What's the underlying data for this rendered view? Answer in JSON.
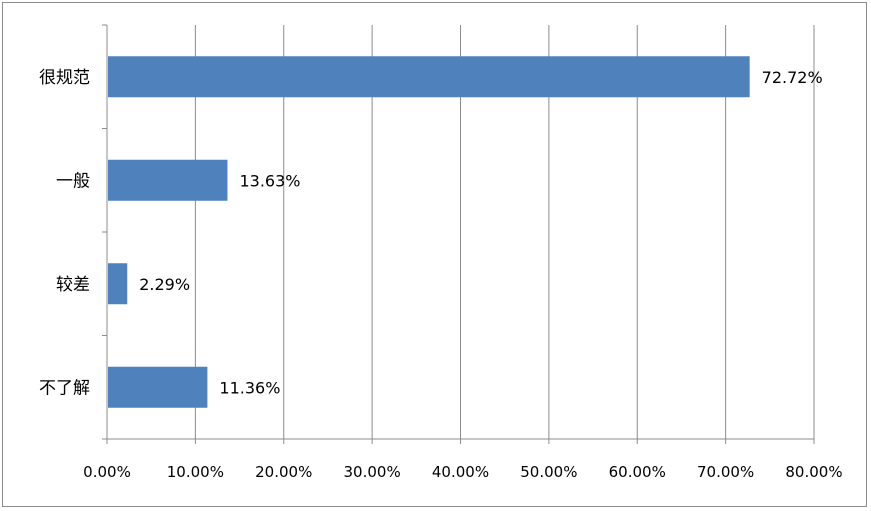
{
  "chart_data": {
    "type": "bar",
    "orientation": "horizontal",
    "title": "",
    "xlabel": "",
    "ylabel": "",
    "categories": [
      "很规范",
      "一般",
      "较差",
      "不了解"
    ],
    "values": [
      72.72,
      13.63,
      2.29,
      11.36
    ],
    "value_labels": [
      "72.72%",
      "13.63%",
      "2.29%",
      "11.36%"
    ],
    "xlim": [
      0,
      80
    ],
    "x_ticks": [
      0,
      10,
      20,
      30,
      40,
      50,
      60,
      70,
      80
    ],
    "x_tick_labels": [
      "0.00%",
      "10.00%",
      "20.00%",
      "30.00%",
      "40.00%",
      "50.00%",
      "60.00%",
      "70.00%",
      "80.00%"
    ],
    "grid": "vertical",
    "legend": "none",
    "bar_color": "#4f81bd",
    "grid_color": "#8c8c8c"
  }
}
